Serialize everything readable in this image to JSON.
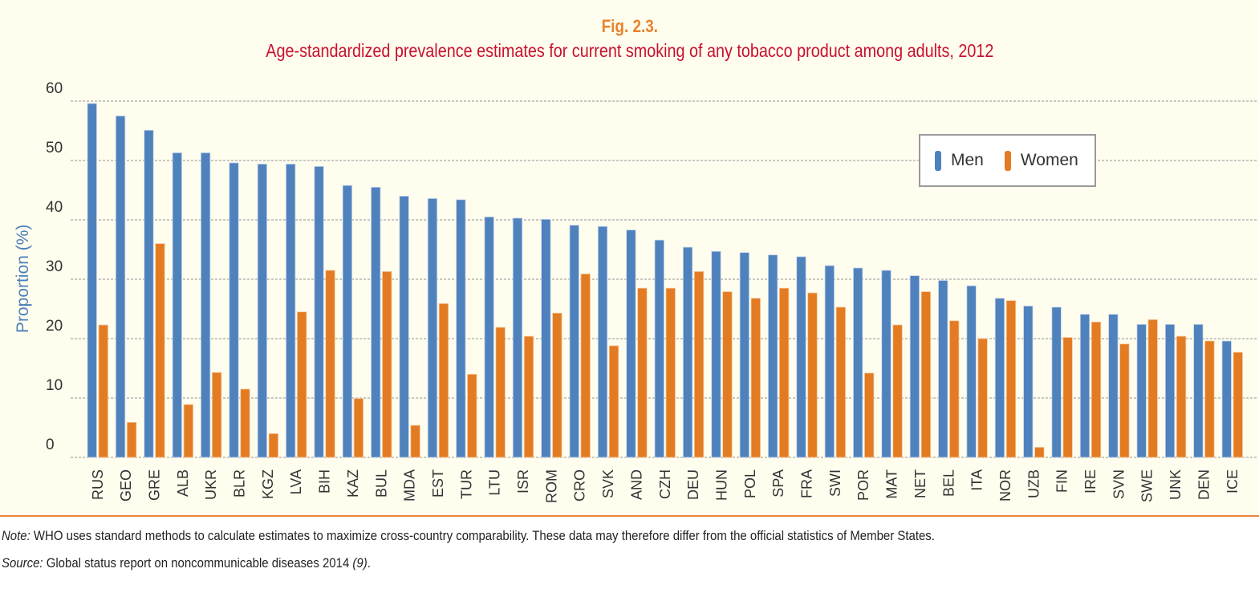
{
  "figure": {
    "label": "Fig. 2.3.",
    "title": "Age-standardized prevalence estimates for current smoking of any tobacco product among adults, 2012"
  },
  "legend": {
    "items": [
      {
        "name": "Men",
        "color": "#4f81bd"
      },
      {
        "name": "Women",
        "color": "#e37b22"
      }
    ]
  },
  "footer": {
    "note_label": "Note:",
    "note_text": " WHO uses standard methods to calculate estimates to maximize cross-country comparability. These data may therefore differ from the official statistics of Member States.",
    "source_label": "Source:",
    "source_text": " Global status report on noncommunicable diseases 2014 ",
    "source_ref": "(9)",
    "source_end": "."
  },
  "colors": {
    "men": "#4f81bd",
    "women": "#e37b22",
    "title": "#c8102e",
    "fig_label": "#e8832f",
    "axis_label": "#4a7fbc",
    "background": "#fffdee"
  },
  "chart_data": {
    "type": "bar",
    "title": "Age-standardized prevalence estimates for current smoking of any tobacco product among adults, 2012",
    "xlabel": "",
    "ylabel": "Proportion (%)",
    "ylim": [
      0,
      60
    ],
    "yticks": [
      0,
      10,
      20,
      30,
      40,
      50,
      60
    ],
    "grid": true,
    "legend_position": "top-right",
    "categories": [
      "RUS",
      "GEO",
      "GRE",
      "ALB",
      "UKR",
      "BLR",
      "KGZ",
      "LVA",
      "BIH",
      "KAZ",
      "BUL",
      "MDA",
      "EST",
      "TUR",
      "LTU",
      "ISR",
      "ROM",
      "CRO",
      "SVK",
      "AND",
      "CZH",
      "DEU",
      "HUN",
      "POL",
      "SPA",
      "FRA",
      "SWI",
      "POR",
      "MAT",
      "NET",
      "BEL",
      "ITA",
      "NOR",
      "UZB",
      "FIN",
      "IRE",
      "SVN",
      "SWE",
      "UNK",
      "DEN",
      "ICE"
    ],
    "series": [
      {
        "name": "Men",
        "values": [
          59.6,
          57.5,
          55.1,
          51.3,
          51.3,
          49.6,
          49.4,
          49.4,
          49.0,
          45.8,
          45.5,
          44.0,
          43.6,
          43.4,
          40.5,
          40.3,
          40.1,
          39.1,
          38.9,
          38.3,
          36.6,
          35.4,
          34.7,
          34.5,
          34.1,
          33.8,
          32.3,
          31.9,
          31.5,
          30.6,
          29.8,
          28.9,
          26.8,
          25.5,
          25.3,
          24.1,
          24.1,
          22.4,
          22.4,
          22.4,
          19.6
        ]
      },
      {
        "name": "Women",
        "values": [
          22.3,
          5.9,
          36.0,
          8.9,
          14.3,
          11.5,
          4.0,
          24.5,
          31.5,
          9.9,
          31.3,
          5.4,
          25.9,
          14.0,
          21.9,
          20.4,
          24.3,
          30.9,
          18.8,
          28.5,
          28.5,
          31.3,
          27.9,
          26.8,
          28.5,
          27.7,
          25.3,
          14.2,
          22.3,
          27.9,
          23.0,
          20.0,
          26.4,
          1.7,
          20.2,
          22.8,
          19.1,
          23.2,
          20.4,
          19.6,
          17.7
        ]
      }
    ]
  }
}
